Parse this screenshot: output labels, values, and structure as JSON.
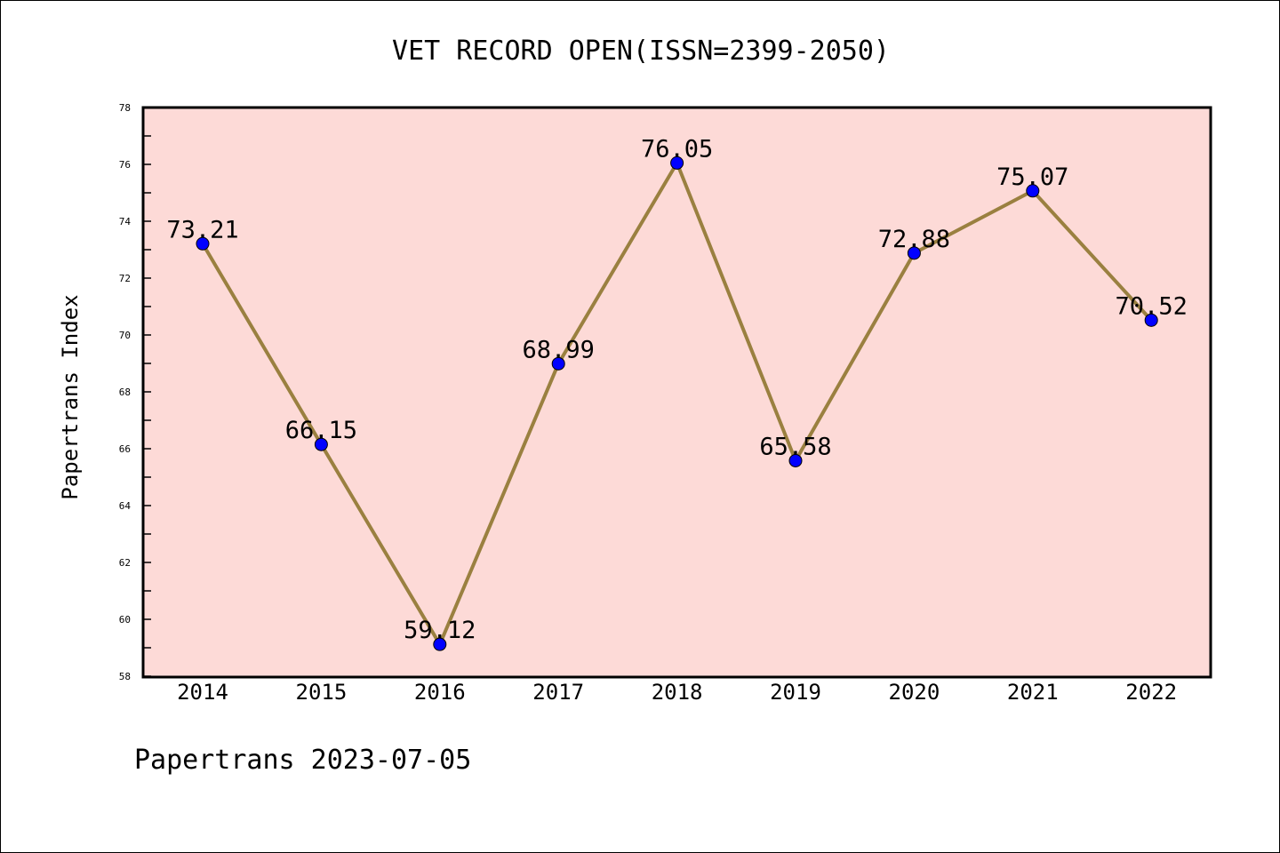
{
  "chart_data": {
    "type": "line",
    "title": "VET RECORD OPEN(ISSN=2399-2050)",
    "xlabel": "",
    "ylabel": "Papertrans Index",
    "categories": [
      "2014",
      "2015",
      "2016",
      "2017",
      "2018",
      "2019",
      "2020",
      "2021",
      "2022"
    ],
    "values": [
      73.21,
      66.15,
      59.12,
      68.99,
      76.05,
      65.58,
      72.88,
      75.07,
      70.52
    ],
    "labels": [
      "73.21",
      "66.15",
      "59.12",
      "68.99",
      "76.05",
      "65.58",
      "72.88",
      "75.07",
      "70.52"
    ],
    "ylim": [
      58,
      78
    ],
    "yticks": [
      "58",
      "60",
      "62",
      "64",
      "66",
      "68",
      "70",
      "72",
      "74",
      "76",
      "78"
    ],
    "grid": false,
    "colors": {
      "line": "#9a8040",
      "marker": "#0000ff",
      "background": "#fddad7"
    }
  },
  "footer": "Papertrans 2023-07-05"
}
